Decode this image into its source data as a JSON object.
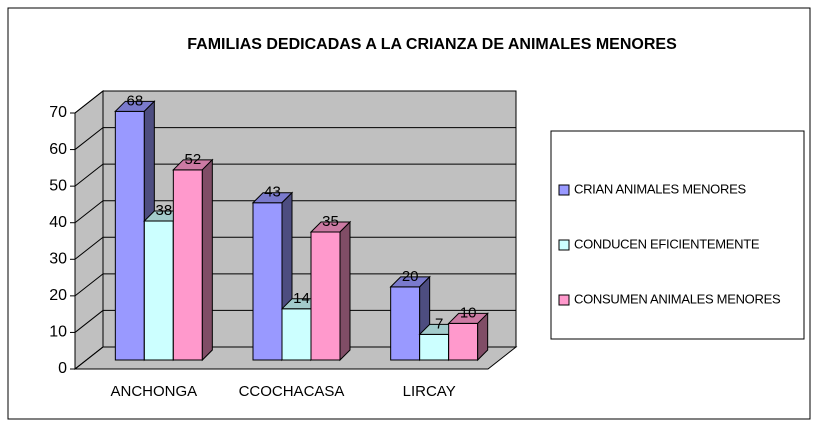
{
  "chart_data": {
    "type": "bar3d",
    "title": "FAMILIAS DEDICADAS A LA CRIANZA DE ANIMALES MENORES",
    "categories": [
      "ANCHONGA",
      "CCOCHACASA",
      "LIRCAY"
    ],
    "series": [
      {
        "name": "CRIAN ANIMALES MENORES",
        "color": "#9999ff",
        "values": [
          68,
          43,
          20
        ]
      },
      {
        "name": "CONDUCEN EFICIENTEMENTE",
        "color": "#ccffff",
        "values": [
          38,
          14,
          7
        ]
      },
      {
        "name": "CONSUMEN ANIMALES MENORES",
        "color": "#ff99cc",
        "values": [
          52,
          35,
          10
        ]
      }
    ],
    "ylim": [
      0,
      70
    ],
    "yticks": [
      0,
      10,
      20,
      30,
      40,
      50,
      60,
      70
    ],
    "grid": true,
    "legend": "right"
  }
}
